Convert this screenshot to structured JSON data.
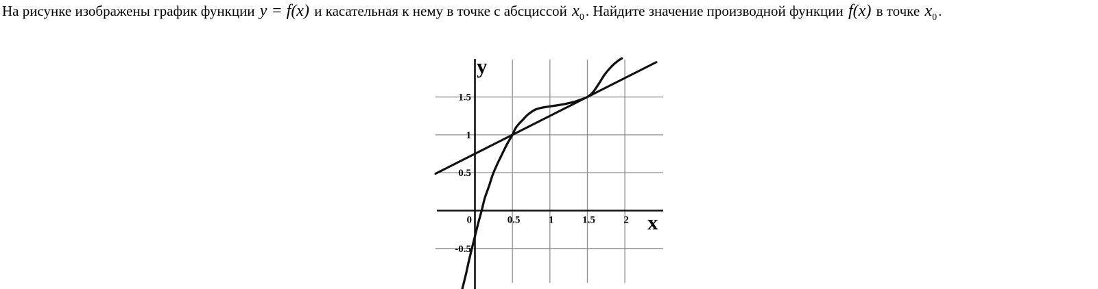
{
  "question": {
    "segments": [
      {
        "style": "plain",
        "text": "На рисунке изображены график функции "
      },
      {
        "style": "math",
        "text": "y = f(x)"
      },
      {
        "style": "plain",
        "text": " и касательная к нему в точке с абсциссой "
      },
      {
        "style": "math",
        "text": "x",
        "sub": "0"
      },
      {
        "style": "plain",
        "text": ". Найдите значение производной функции "
      },
      {
        "style": "math",
        "text": "f(x)"
      },
      {
        "style": "plain",
        "text": " в точке "
      },
      {
        "style": "math",
        "text": "x",
        "sub": "0"
      },
      {
        "style": "plain",
        "text": "."
      }
    ]
  },
  "chart_data": {
    "type": "line",
    "xlabel": "x",
    "ylabel": "y",
    "xlim": [
      -0.53,
      2.53
    ],
    "ylim": [
      -1.06,
      2.06
    ],
    "grid": true,
    "x_gridlines": [
      0.5,
      1,
      1.5,
      2
    ],
    "y_gridlines": [
      1.5,
      1,
      0.5,
      -0.5
    ],
    "x_tick_labels": [
      {
        "v": 0.5,
        "label": "0.5"
      },
      {
        "v": 1,
        "label": "1"
      },
      {
        "v": 1.5,
        "label": "1.5"
      },
      {
        "v": 2,
        "label": "2"
      }
    ],
    "y_tick_labels": [
      {
        "v": 1.5,
        "label": "1.5"
      },
      {
        "v": 1,
        "label": "1"
      },
      {
        "v": 0.5,
        "label": "0.5"
      },
      {
        "v": -0.5,
        "label": "-0.5"
      }
    ],
    "origin_label": "0",
    "series": [
      {
        "name": "function-curve",
        "points": [
          [
            -0.17,
            -1.04
          ],
          [
            -0.12,
            -0.84
          ],
          [
            -0.08,
            -0.66
          ],
          [
            -0.04,
            -0.5
          ],
          [
            0,
            -0.34
          ],
          [
            0.04,
            -0.18
          ],
          [
            0.09,
            0
          ],
          [
            0.13,
            0.16
          ],
          [
            0.19,
            0.33
          ],
          [
            0.24,
            0.48
          ],
          [
            0.31,
            0.64
          ],
          [
            0.37,
            0.76
          ],
          [
            0.43,
            0.88
          ],
          [
            0.5,
            1.0
          ],
          [
            0.55,
            1.1
          ],
          [
            0.63,
            1.19
          ],
          [
            0.71,
            1.27
          ],
          [
            0.8,
            1.33
          ],
          [
            0.9,
            1.36
          ],
          [
            1.0,
            1.375
          ],
          [
            1.1,
            1.39
          ],
          [
            1.21,
            1.41
          ],
          [
            1.32,
            1.435
          ],
          [
            1.41,
            1.465
          ],
          [
            1.5,
            1.5
          ],
          [
            1.58,
            1.57
          ],
          [
            1.65,
            1.67
          ],
          [
            1.73,
            1.795
          ],
          [
            1.82,
            1.9
          ],
          [
            1.9,
            1.97
          ],
          [
            1.96,
            2.01
          ]
        ]
      },
      {
        "name": "tangent-line",
        "slope": 0.5,
        "intercept": 0.75,
        "points": [
          [
            -0.526,
            0.487
          ],
          [
            2.42,
            1.96
          ]
        ]
      }
    ],
    "tangent_point": {
      "x0": 1.5,
      "y0": 1.5
    },
    "curve_line_intersection": [
      0.5,
      1
    ],
    "tangent_slope_readout": 0.5
  },
  "colors": {
    "background": "#ffffff",
    "text": "#050505",
    "axis": "#111111",
    "curve": "#111111",
    "grid": "#8f8f8f"
  }
}
